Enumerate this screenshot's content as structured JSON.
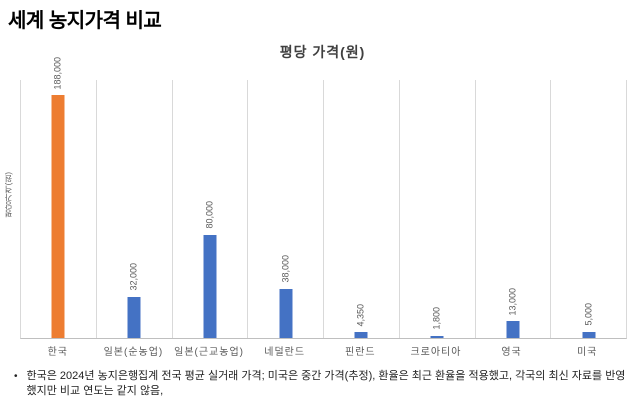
{
  "page": {
    "title": "세계 농지가격 비교"
  },
  "chart_data": {
    "type": "bar",
    "title": "평당 가격(원)",
    "ylabel": "평당가격(원)",
    "xlabel": "",
    "categories": [
      "한국",
      "일본(순농업)",
      "일본(근교농업)",
      "네덜란드",
      "핀란드",
      "크로아티아",
      "영국",
      "미국"
    ],
    "values": [
      188000,
      32000,
      80000,
      38000,
      4350,
      1800,
      13000,
      5000
    ],
    "labels": [
      "188,000",
      "32,000",
      "80,000",
      "38,000",
      "4,350",
      "1,800",
      "13,000",
      "5,000"
    ],
    "ylim": [
      0,
      200000
    ],
    "bar_color": "#4472C4",
    "highlight_color": "#ED7D31",
    "highlight_index": 0,
    "grid": "vertical-category-boundaries",
    "legend": "none",
    "data_label_rotation": 90
  },
  "footnote": {
    "bullet": "•",
    "text": "한국은 2024년 농지은행집계 전국 평균 실거래 가격; 미국은 중간 가격(추정), 환율은 최근 환율을 적용했고, 각국의 최신 자료를 반영했지만 비교 연도는 같지 않음,"
  }
}
